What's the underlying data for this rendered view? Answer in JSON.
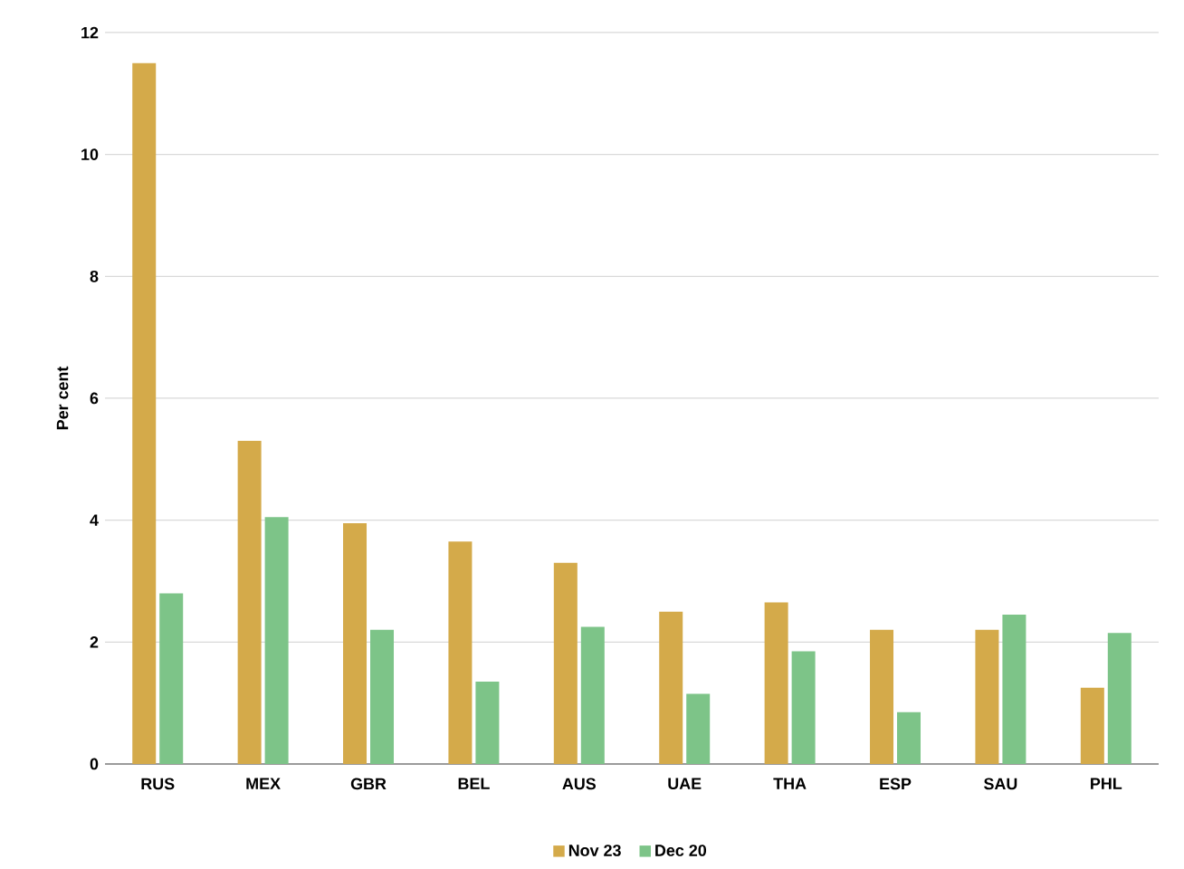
{
  "chart_data": {
    "type": "bar",
    "ylabel": "Per cent",
    "categories": [
      "RUS",
      "MEX",
      "GBR",
      "BEL",
      "AUS",
      "UAE",
      "THA",
      "ESP",
      "SAU",
      "PHL"
    ],
    "series": [
      {
        "name": "Nov 23",
        "color": "#d4aa4a",
        "values": [
          11.5,
          5.3,
          3.95,
          3.65,
          3.3,
          2.5,
          2.65,
          2.2,
          2.2,
          1.25
        ]
      },
      {
        "name": "Dec 20",
        "color": "#7dc488",
        "values": [
          2.8,
          4.05,
          2.2,
          1.35,
          2.25,
          1.15,
          1.85,
          0.85,
          2.45,
          2.15
        ]
      }
    ],
    "ylim": [
      0,
      12
    ],
    "yticks": [
      0,
      2,
      4,
      6,
      8,
      10,
      12
    ],
    "grid": "y",
    "legend": "bottom"
  }
}
